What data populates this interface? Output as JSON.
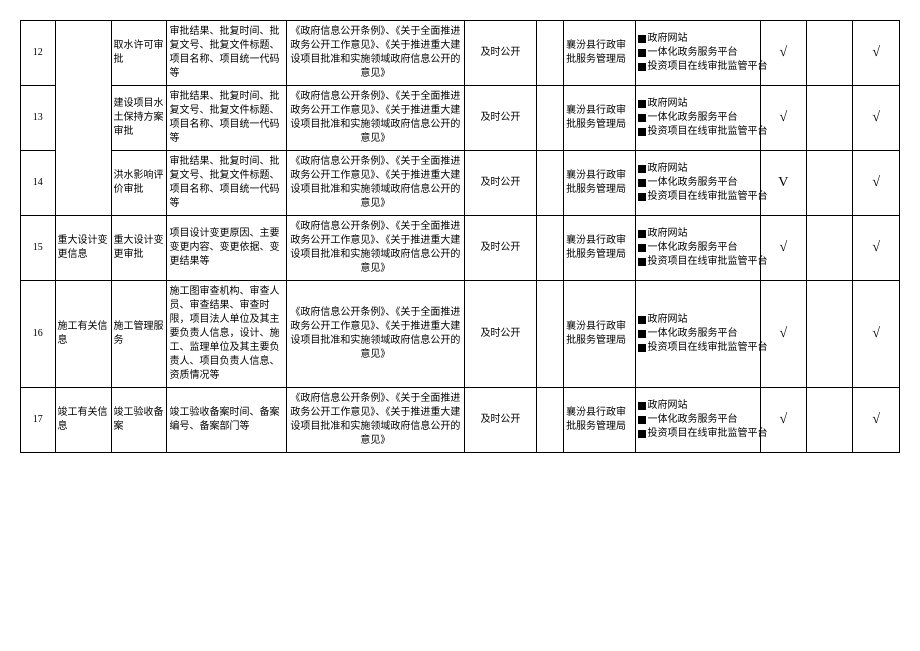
{
  "basis_text": "《政府信息公开条例》、《关于全面推进政务公开工作意见》、《关于推进重大建设项目批准和实施领域政府信息公开的意见》",
  "timing": "及时公开",
  "org": "襄汾县行政审批服务管理局",
  "channels": [
    "政府网站",
    "一体化政务服务平台",
    "投资项目在线审批监管平台"
  ],
  "check": "√",
  "check_v": "V",
  "rows": [
    {
      "num": "12",
      "cat1": null,
      "cat2": "取水许可审批",
      "desc": "审批结果、批复时间、批复文号、批复文件标题、项目名称、项目统一代码等",
      "chk9": "√",
      "chk10": "",
      "chk11": "√"
    },
    {
      "num": "13",
      "cat1": null,
      "cat2": "建设项目水土保持方案审批",
      "cat2_vertical": true,
      "desc": "审批结果、批复时间、批复文号、批复文件标题、项目名称、项目统一代码等",
      "chk9": "√",
      "chk10": "",
      "chk11": "√"
    },
    {
      "num": "14",
      "cat1": null,
      "cat2": "洪水影响评价审批",
      "desc": "审批结果、批复时间、批复文号、批复文件标题、项目名称、项目统一代码等",
      "chk9": "V",
      "chk10": "",
      "chk11": "√"
    },
    {
      "num": "15",
      "cat1": "重大设计变更信息",
      "cat2": "重大设计变更审批",
      "desc": "项目设计变更原因、主要变更内容、变更依据、变更结果等",
      "chk9": "√",
      "chk10": "",
      "chk11": "√"
    },
    {
      "num": "16",
      "cat1": "施工有关信息",
      "cat2": "施工管理服务",
      "desc": "施工图审查机构、审查人员、审查结果、审查时限，项目法人单位及其主要负责人信息，设计、施工、监理单位及其主要负责人、项目负责人信息、资质情况等",
      "chk9": "√",
      "chk10": "",
      "chk11": "√"
    },
    {
      "num": "17",
      "cat1": "竣工有关信息",
      "cat2": "竣工验收备案",
      "desc": "竣工验收备案时间、备案编号、备案部门等",
      "chk9": "√",
      "chk10": "",
      "chk11": "√"
    }
  ]
}
